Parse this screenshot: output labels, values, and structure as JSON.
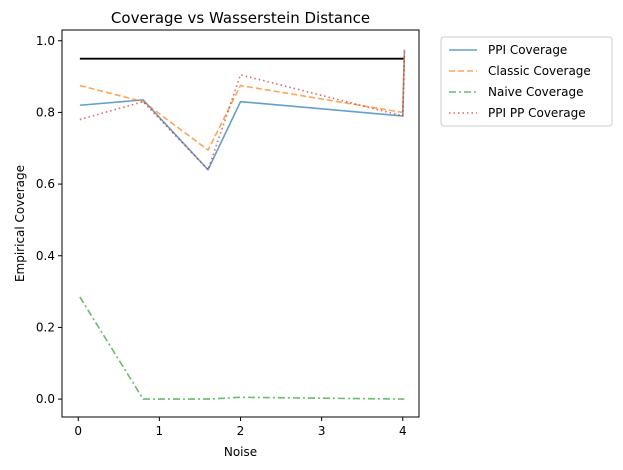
{
  "chart_data": {
    "type": "line",
    "title": "Coverage vs Wasserstein Distance",
    "xlabel": "Noise",
    "ylabel": "Empirical Coverage",
    "xlim": [
      -0.2,
      4.2
    ],
    "ylim": [
      -0.05,
      1.03
    ],
    "xticks": [
      0,
      1,
      2,
      3,
      4
    ],
    "xtick_labels": [
      "0",
      "1",
      "2",
      "3",
      "4"
    ],
    "yticks": [
      0.0,
      0.2,
      0.4,
      0.6,
      0.8,
      1.0
    ],
    "ytick_labels": [
      "0.0",
      "0.2",
      "0.4",
      "0.6",
      "0.8",
      "1.0"
    ],
    "grid": false,
    "legend_position": "outside-top-right",
    "reference_line": {
      "y": 0.95,
      "x": [
        0.02,
        4.02
      ],
      "color": "#000000"
    },
    "series": [
      {
        "name": "PPI Coverage",
        "color": "#1f77b4",
        "style": "solid",
        "x": [
          0.02,
          0.8,
          1.6,
          2.0,
          4.0,
          4.02
        ],
        "y": [
          0.82,
          0.835,
          0.64,
          0.83,
          0.79,
          0.975
        ]
      },
      {
        "name": "Classic Coverage",
        "color": "#ff7f0e",
        "style": "dashed",
        "x": [
          0.02,
          0.8,
          1.6,
          2.0,
          4.0,
          4.02
        ],
        "y": [
          0.875,
          0.83,
          0.695,
          0.875,
          0.8,
          0.97
        ]
      },
      {
        "name": "Naive Coverage",
        "color": "#2ca02c",
        "style": "dashdot",
        "x": [
          0.02,
          0.8,
          1.6,
          2.0,
          4.0,
          4.02
        ],
        "y": [
          0.285,
          0.0,
          0.0,
          0.005,
          0.0,
          0.0
        ]
      },
      {
        "name": "PPI PP Coverage",
        "color": "#d62728",
        "style": "dotted",
        "x": [
          0.02,
          0.8,
          1.6,
          2.0,
          4.0,
          4.02
        ],
        "y": [
          0.78,
          0.83,
          0.64,
          0.905,
          0.79,
          0.96
        ]
      }
    ]
  }
}
